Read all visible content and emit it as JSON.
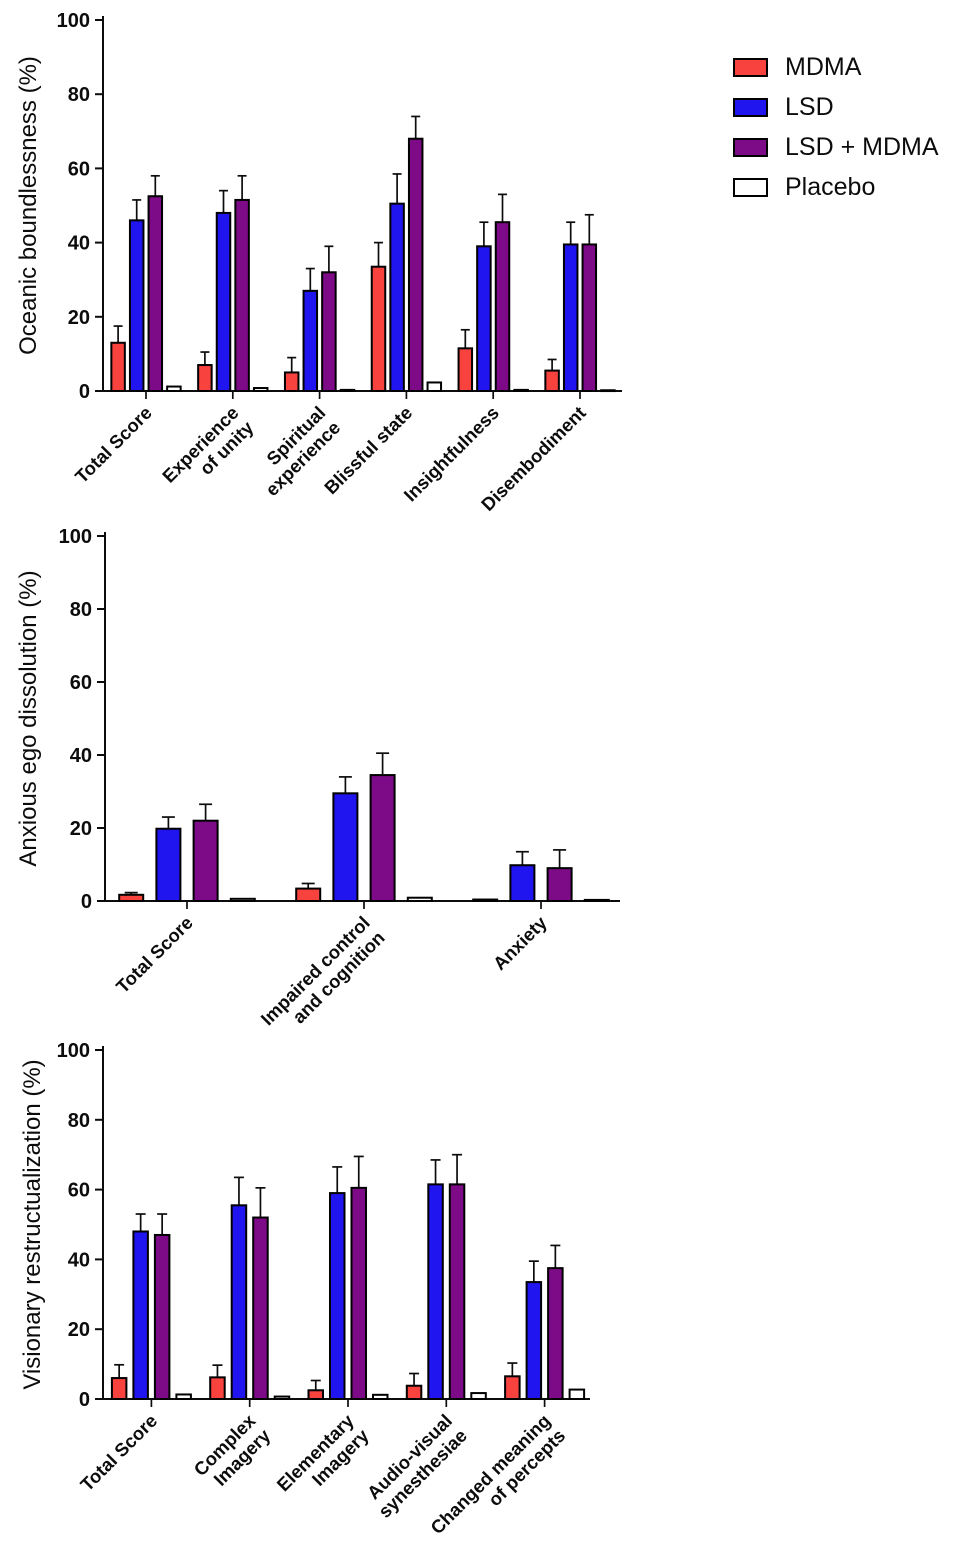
{
  "figure": {
    "background": "#ffffff"
  },
  "legend": {
    "position": "top-right",
    "items": [
      {
        "label": "MDMA",
        "color": "#F7423E"
      },
      {
        "label": "LSD",
        "color": "#2015EE"
      },
      {
        "label": "LSD + MDMA",
        "color": "#7D0A86"
      },
      {
        "label": "Placebo",
        "color": "#FFFFFF"
      }
    ]
  },
  "chart_data": [
    {
      "type": "bar",
      "name": "oceanic-boundlessness",
      "title": "",
      "xlabel": "",
      "ylabel": "Oceanic boundlessness (%)",
      "ylim": [
        0,
        100
      ],
      "yticks": [
        0,
        20,
        40,
        60,
        80,
        100
      ],
      "grid": false,
      "error_bars": "upper-sem",
      "legend_position": "top-right",
      "categories": [
        [
          "Total Score"
        ],
        [
          "Experience",
          "of unity"
        ],
        [
          "Spiritual",
          "experience"
        ],
        [
          "Blissful state"
        ],
        [
          "Insightfulness"
        ],
        [
          "Disembodiment"
        ]
      ],
      "series": [
        {
          "name": "MDMA",
          "color": "#F7423E",
          "values": [
            13,
            7,
            5,
            33.5,
            11.5,
            5.5
          ],
          "errors": [
            4.5,
            3.5,
            4,
            6.5,
            5,
            3
          ]
        },
        {
          "name": "LSD",
          "color": "#2015EE",
          "values": [
            46,
            48,
            27,
            50.5,
            39,
            39.5
          ],
          "errors": [
            5.5,
            6,
            6,
            8,
            6.5,
            6
          ]
        },
        {
          "name": "LSD + MDMA",
          "color": "#7D0A86",
          "values": [
            52.5,
            51.5,
            32,
            68,
            45.5,
            39.5
          ],
          "errors": [
            5.5,
            6.5,
            7,
            6,
            7.5,
            8
          ]
        },
        {
          "name": "Placebo",
          "color": "#FFFFFF",
          "values": [
            1.2,
            0.8,
            0.3,
            2.3,
            0.3,
            0.2
          ],
          "errors": [
            0,
            0,
            0,
            0,
            0,
            0
          ]
        }
      ]
    },
    {
      "type": "bar",
      "name": "anxious-ego-dissolution",
      "title": "",
      "xlabel": "",
      "ylabel": "Anxious ego dissolution (%)",
      "ylim": [
        0,
        100
      ],
      "yticks": [
        0,
        20,
        40,
        60,
        80,
        100
      ],
      "grid": false,
      "error_bars": "upper-sem",
      "categories": [
        [
          "Total Score"
        ],
        [
          "Impaired control",
          "and cognition"
        ],
        [
          "Anxiety"
        ]
      ],
      "series": [
        {
          "name": "MDMA",
          "color": "#F7423E",
          "values": [
            1.7,
            3.4,
            0.4
          ],
          "errors": [
            0.6,
            1.4,
            0
          ]
        },
        {
          "name": "LSD",
          "color": "#2015EE",
          "values": [
            19.8,
            29.5,
            9.8
          ],
          "errors": [
            3.2,
            4.5,
            3.7
          ]
        },
        {
          "name": "LSD + MDMA",
          "color": "#7D0A86",
          "values": [
            22,
            34.5,
            9
          ],
          "errors": [
            4.5,
            6,
            5
          ]
        },
        {
          "name": "Placebo",
          "color": "#FFFFFF",
          "values": [
            0.6,
            0.9,
            0.3
          ],
          "errors": [
            0,
            0,
            0
          ]
        }
      ]
    },
    {
      "type": "bar",
      "name": "visionary-restructualization",
      "title": "",
      "xlabel": "",
      "ylabel": "Visionary restructualization (%)",
      "ylim": [
        0,
        100
      ],
      "yticks": [
        0,
        20,
        40,
        60,
        80,
        100
      ],
      "grid": false,
      "error_bars": "upper-sem",
      "categories": [
        [
          "Total Score"
        ],
        [
          "Complex",
          "Imagery"
        ],
        [
          "Elementary",
          "Imagery"
        ],
        [
          "Audio-visual",
          "synesthesiae"
        ],
        [
          "Changed meaning",
          "of percepts"
        ]
      ],
      "series": [
        {
          "name": "MDMA",
          "color": "#F7423E",
          "values": [
            6,
            6.2,
            2.5,
            3.8,
            6.5
          ],
          "errors": [
            3.8,
            3.5,
            2.8,
            3.5,
            3.8
          ]
        },
        {
          "name": "LSD",
          "color": "#2015EE",
          "values": [
            48,
            55.5,
            59,
            61.5,
            33.5
          ],
          "errors": [
            5,
            8,
            7.5,
            7,
            6
          ]
        },
        {
          "name": "LSD + MDMA",
          "color": "#7D0A86",
          "values": [
            47,
            52,
            60.5,
            61.5,
            37.5
          ],
          "errors": [
            6,
            8.5,
            9,
            8.5,
            6.5
          ]
        },
        {
          "name": "Placebo",
          "color": "#FFFFFF",
          "values": [
            1.3,
            0.7,
            1.2,
            1.7,
            2.7
          ],
          "errors": [
            0,
            0,
            0,
            0,
            0
          ]
        }
      ]
    }
  ]
}
